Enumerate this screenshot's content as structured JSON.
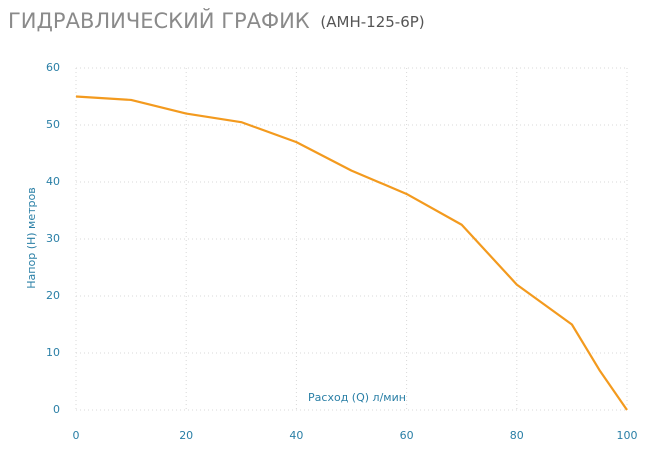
{
  "chart_data": {
    "type": "line",
    "title": "ГИДРАВЛИЧЕСКИЙ ГРАФИК",
    "subtitle": "(АМН-125-6Р)",
    "x_label": "Расход (Q) л/мин",
    "y_label": "Напор (Н) метров",
    "x": [
      0,
      10,
      20,
      30,
      40,
      50,
      60,
      70,
      80,
      90,
      95,
      100
    ],
    "series": [
      {
        "name": "АМН-125-6Р",
        "color": "#f39a1e",
        "values": [
          55,
          54.4,
          52,
          50.5,
          47,
          42,
          37.9,
          32.5,
          22,
          15,
          7,
          0
        ]
      }
    ],
    "xlim": [
      0,
      100
    ],
    "xticks": [
      0,
      20,
      40,
      60,
      80,
      100
    ],
    "ylim": [
      0,
      60
    ],
    "yticks": [
      0,
      10,
      20,
      30,
      40,
      50,
      60
    ],
    "grid": true
  }
}
